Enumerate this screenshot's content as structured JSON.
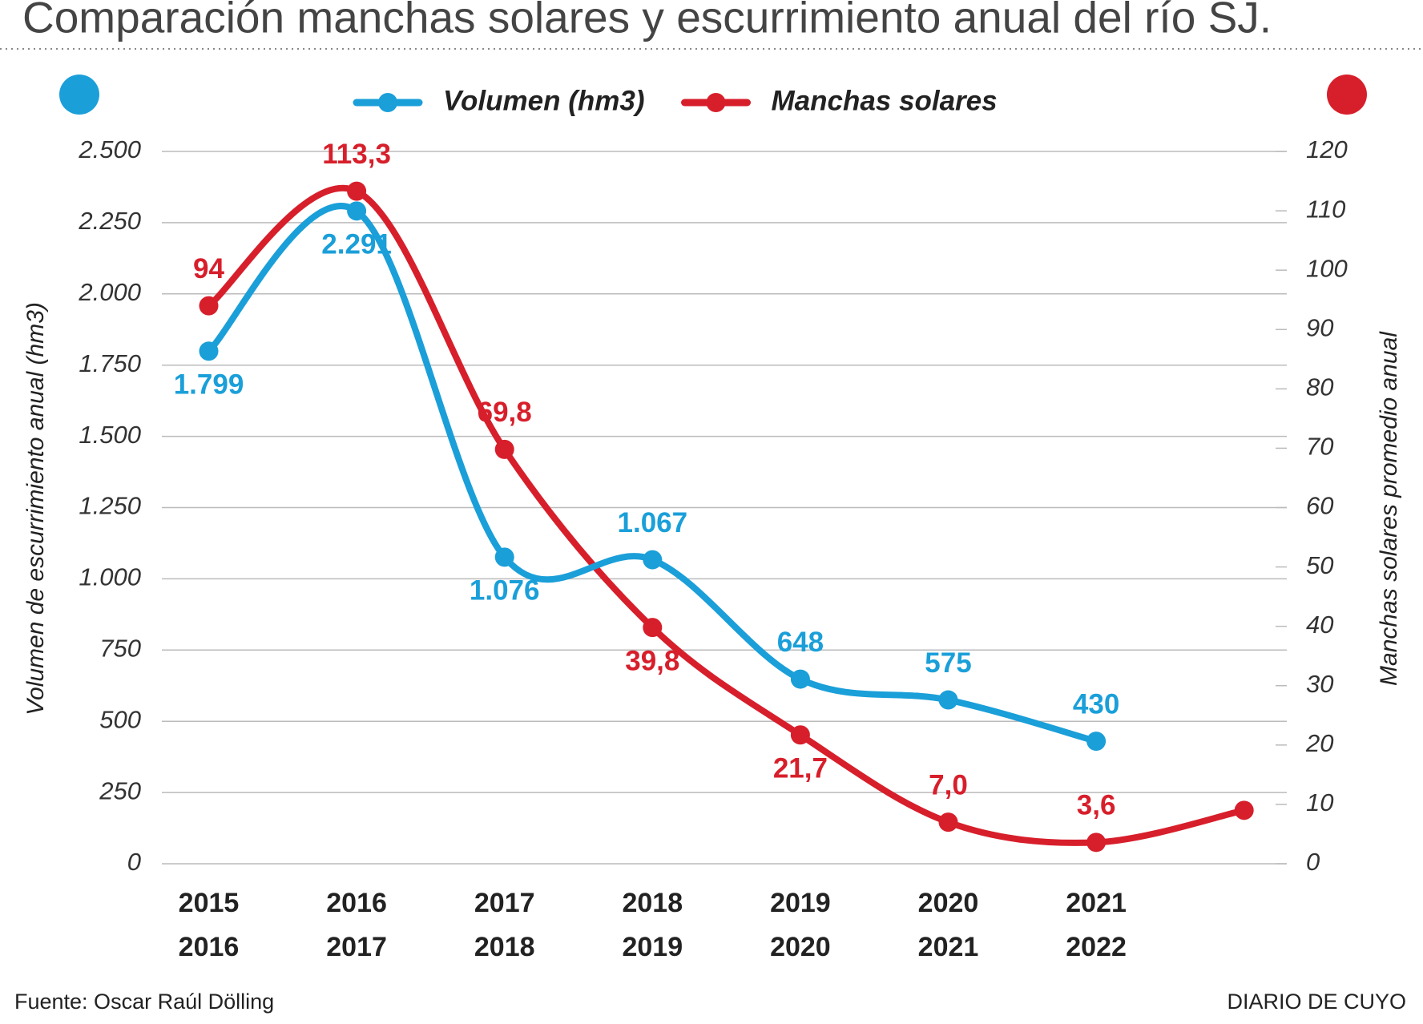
{
  "chart_data": {
    "type": "line",
    "title": "Comparación manchas solares y escurrimiento anual del río SJ.",
    "y_label": "Volumen de escurrimiento anual (hm3)",
    "y2_label": "Manchas solares promedio anual",
    "source": "Fuente: Oscar Raúl Dölling",
    "brand": "DIARIO DE CUYO",
    "categories": [
      [
        "2015",
        "2016"
      ],
      [
        "2016",
        "2017"
      ],
      [
        "2017",
        "2018"
      ],
      [
        "2018",
        "2019"
      ],
      [
        "2019",
        "2020"
      ],
      [
        "2020",
        "2021"
      ],
      [
        "2021",
        "2022"
      ],
      null
    ],
    "series": [
      {
        "name": "Volumen (hm3)",
        "color": "#1a9fd9",
        "values": [
          1799,
          2291,
          1076,
          1067,
          648,
          575,
          430,
          null
        ],
        "value_labels": [
          "1.799",
          "2.291",
          "1.076",
          "1.067",
          "648",
          "575",
          "430",
          null
        ]
      },
      {
        "name": "Manchas solares",
        "color": "#d71f2b",
        "axis": "y2",
        "values": [
          94,
          113.3,
          69.8,
          39.8,
          21.7,
          7.0,
          3.6,
          9
        ],
        "value_labels": [
          "94",
          "113,3",
          "69,8",
          "39,8",
          "21,7",
          "7,0",
          "3,6",
          null
        ]
      }
    ],
    "ylim": [
      0,
      2500
    ],
    "yticks": [
      0,
      250,
      500,
      750,
      {
        "value": 1000,
        "label": "1.000"
      },
      {
        "value": 1250,
        "label": "1.250"
      },
      {
        "value": 1500,
        "label": "1.500"
      },
      {
        "value": 1750,
        "label": "1.750"
      },
      {
        "value": 2000,
        "label": "2.000"
      },
      {
        "value": 2250,
        "label": "2.250"
      },
      {
        "value": 2500,
        "label": "2.500"
      }
    ],
    "y2lim": [
      0,
      120
    ],
    "y2ticks": [
      0,
      10,
      20,
      30,
      40,
      50,
      60,
      70,
      80,
      90,
      100,
      110,
      120
    ],
    "grid": true
  }
}
